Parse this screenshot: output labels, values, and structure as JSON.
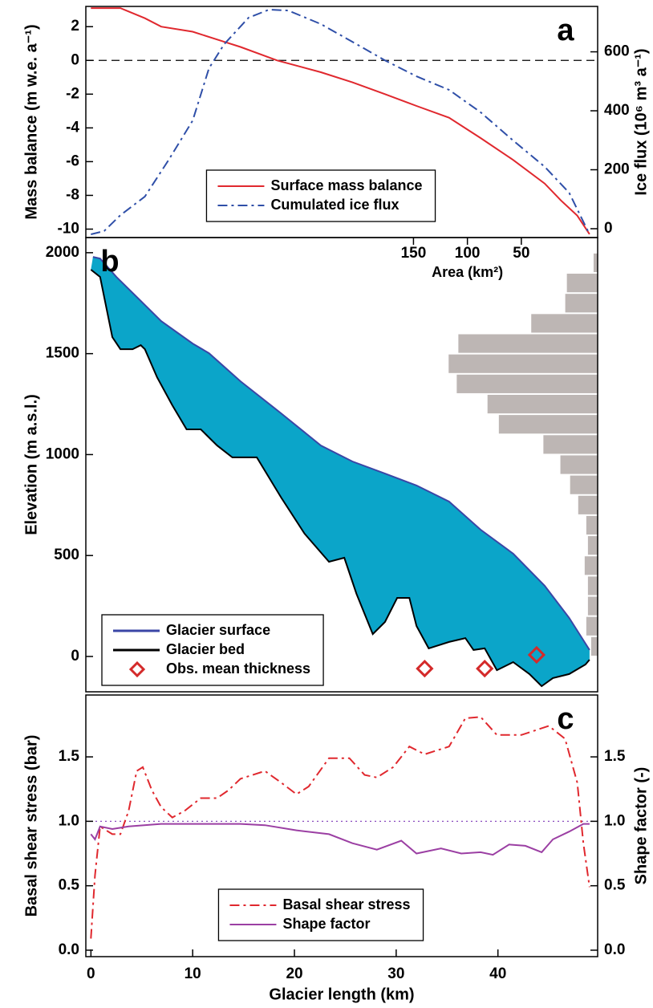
{
  "chart_data": [
    {
      "type": "line",
      "panel_label": "a",
      "ylabel": "Mass balance (m w.e. a⁻¹)",
      "y2label": "Ice flux (10⁶ m³ a⁻¹)",
      "xlim": [
        -0.5,
        49.8
      ],
      "ylim": [
        -10.5,
        3.2
      ],
      "yticks": [
        -10,
        -8,
        -6,
        -4,
        -2,
        0,
        2
      ],
      "y2lim": [
        -30,
        754
      ],
      "y2ticks": [
        0,
        200,
        400,
        600
      ],
      "reference_line": {
        "value": 0,
        "style": "dashed",
        "color": "#000000"
      },
      "legend": "lower center",
      "series": [
        {
          "name": "Surface mass balance",
          "color": "#e0282e",
          "style": "solid",
          "x": [
            0,
            2.9,
            3.7,
            5.3,
            6.9,
            10,
            13.1,
            14.7,
            18.3,
            22.6,
            25.7,
            28.9,
            32,
            35.2,
            38.3,
            41.5,
            44.6,
            46.2,
            47.8,
            49
          ],
          "values": [
            3.1,
            3.1,
            2.9,
            2.5,
            2,
            1.7,
            1.1,
            0.8,
            0,
            -0.7,
            -1.3,
            -2,
            -2.7,
            -3.4,
            -4.6,
            -5.9,
            -7.3,
            -8.3,
            -9.2,
            -10.3
          ]
        },
        {
          "name": "Cumulated ice flux",
          "color": "#2f4fa8",
          "style": "dashdot",
          "axis": "y2",
          "x": [
            0,
            1.3,
            2.9,
            5.3,
            7.6,
            10,
            11.6,
            13.1,
            15.5,
            17.5,
            19.4,
            22.6,
            25.7,
            28.9,
            32,
            35.2,
            38.3,
            41.5,
            44.6,
            47,
            49
          ],
          "values": [
            -19,
            -8,
            46,
            109,
            231,
            367,
            544,
            626,
            716,
            743,
            740,
            694,
            634,
            571,
            517,
            471,
            395,
            299,
            210,
            122,
            -19
          ]
        }
      ]
    },
    {
      "type": "profile",
      "panel_label": "b",
      "ylabel": "Elevation (m a.s.l.)",
      "xlim": [
        -0.5,
        49.8
      ],
      "ylim": [
        -175,
        2075
      ],
      "yticks": [
        0,
        500,
        1000,
        1500,
        2000
      ],
      "fill_color": "#0ba5c9",
      "legend": "lower left",
      "area_axis": {
        "label": "Area (km²)",
        "ticks": [
          150,
          100,
          50
        ],
        "positions_km": [
          31.7,
          37,
          42.3
        ]
      },
      "hypsometry": {
        "color": "#bdb6b4",
        "xlim": [
          0,
          632
        ],
        "bins": [
          0,
          100,
          200,
          300,
          400,
          500,
          600,
          700,
          800,
          900,
          1000,
          1100,
          1200,
          1300,
          1400,
          1500,
          1600,
          1700,
          1800,
          1900,
          2000
        ],
        "values": [
          8,
          14,
          12,
          12,
          16,
          12,
          14,
          24,
          34,
          46,
          67,
          122,
          136,
          174,
          184,
          172,
          82,
          40,
          38,
          5
        ]
      },
      "series": [
        {
          "name": "Glacier surface",
          "color": "#3a46a6",
          "style": "solid",
          "x": [
            0.2,
            0.9,
            2.5,
            4.9,
            6.9,
            10,
            11.6,
            14.7,
            18.7,
            22.6,
            25.7,
            28.9,
            32,
            35.2,
            38.3,
            41.5,
            44.6,
            47,
            49
          ],
          "values": [
            1979,
            1971,
            1880,
            1761,
            1661,
            1550,
            1502,
            1363,
            1204,
            1045,
            966,
            906,
            847,
            767,
            628,
            509,
            350,
            191,
            32
          ]
        },
        {
          "name": "Glacier bed",
          "color": "#000000",
          "style": "solid",
          "x": [
            0,
            0.9,
            2.1,
            2.9,
            4.1,
            4.9,
            5.3,
            6.5,
            8,
            9.4,
            10.8,
            12.4,
            13.9,
            16.3,
            18.7,
            21,
            23.4,
            24.9,
            26.1,
            27.7,
            28.9,
            30.1,
            31.3,
            32,
            33.2,
            35.2,
            36.8,
            37.6,
            38.7,
            39.9,
            41.5,
            43.1,
            44.3,
            45.4,
            47,
            48.6,
            49
          ],
          "values": [
            1916,
            1880,
            1582,
            1522,
            1522,
            1542,
            1522,
            1383,
            1244,
            1125,
            1125,
            1045,
            986,
            986,
            787,
            608,
            469,
            489,
            310,
            111,
            171,
            290,
            290,
            151,
            40,
            72,
            91,
            32,
            40,
            -68,
            -28,
            -87,
            -147,
            -107,
            -87,
            -40,
            -16
          ]
        },
        {
          "name": "Obs. mean thickness",
          "color": "#d42a2a",
          "marker": "diamond",
          "x": [
            32.8,
            38.7,
            43.8
          ],
          "values": [
            -60,
            -60,
            8
          ]
        }
      ]
    },
    {
      "type": "line",
      "panel_label": "c",
      "ylabel": "Basal shear stress (bar)",
      "y2label": "Shape factor (-)",
      "xlabel": "Glacier length (km)",
      "xlim": [
        -0.5,
        49.8
      ],
      "xticks": [
        0,
        10,
        20,
        30,
        40
      ],
      "ylim": [
        -0.05,
        1.98
      ],
      "yticks": [
        {
          "value": 0,
          "label": "0.0"
        },
        0.5,
        {
          "value": 1,
          "label": "1.0"
        },
        1.5
      ],
      "y2lim": [
        -0.05,
        1.98
      ],
      "y2ticks": [
        {
          "value": 0,
          "label": "0.0"
        },
        0.5,
        {
          "value": 1,
          "label": "1.0"
        },
        1.5
      ],
      "reference_line": {
        "value": 1,
        "style": "dotted",
        "color": "#8a4bbf"
      },
      "legend": "lower center",
      "series": [
        {
          "name": "Basal shear stress",
          "color": "#e0282e",
          "style": "dashdot",
          "x": [
            0,
            0.4,
            0.9,
            2.1,
            2.9,
            3.7,
            4.5,
            5.1,
            6,
            6.9,
            8,
            9.2,
            10.8,
            12.4,
            13.5,
            14.7,
            17.1,
            18.7,
            20.2,
            21.4,
            23.4,
            25.4,
            26.9,
            28.1,
            29.7,
            31.3,
            32.8,
            35.2,
            36.8,
            38.3,
            39.9,
            42.3,
            45,
            46.6,
            47.8,
            48.4,
            49
          ],
          "values": [
            0.09,
            0.58,
            0.96,
            0.9,
            0.9,
            1.08,
            1.39,
            1.42,
            1.24,
            1.11,
            1.03,
            1.08,
            1.18,
            1.18,
            1.24,
            1.33,
            1.39,
            1.3,
            1.21,
            1.27,
            1.49,
            1.49,
            1.36,
            1.34,
            1.42,
            1.58,
            1.52,
            1.58,
            1.8,
            1.81,
            1.67,
            1.67,
            1.74,
            1.64,
            1.3,
            0.83,
            0.49
          ]
        },
        {
          "name": "Shape factor",
          "color": "#9b3fa3",
          "style": "solid",
          "axis": "y2",
          "x": [
            0,
            0.4,
            0.9,
            2.1,
            3.7,
            6.9,
            14.7,
            17.1,
            20.2,
            23.4,
            25.7,
            28.1,
            30.5,
            32,
            34.4,
            36.4,
            38.3,
            39.5,
            41.1,
            42.7,
            44.3,
            45.4,
            47,
            48.4,
            49
          ],
          "values": [
            0.9,
            0.86,
            0.96,
            0.94,
            0.96,
            0.98,
            0.98,
            0.97,
            0.93,
            0.9,
            0.83,
            0.78,
            0.85,
            0.75,
            0.79,
            0.75,
            0.76,
            0.74,
            0.82,
            0.81,
            0.76,
            0.86,
            0.92,
            0.98,
            0.98
          ]
        }
      ]
    }
  ]
}
